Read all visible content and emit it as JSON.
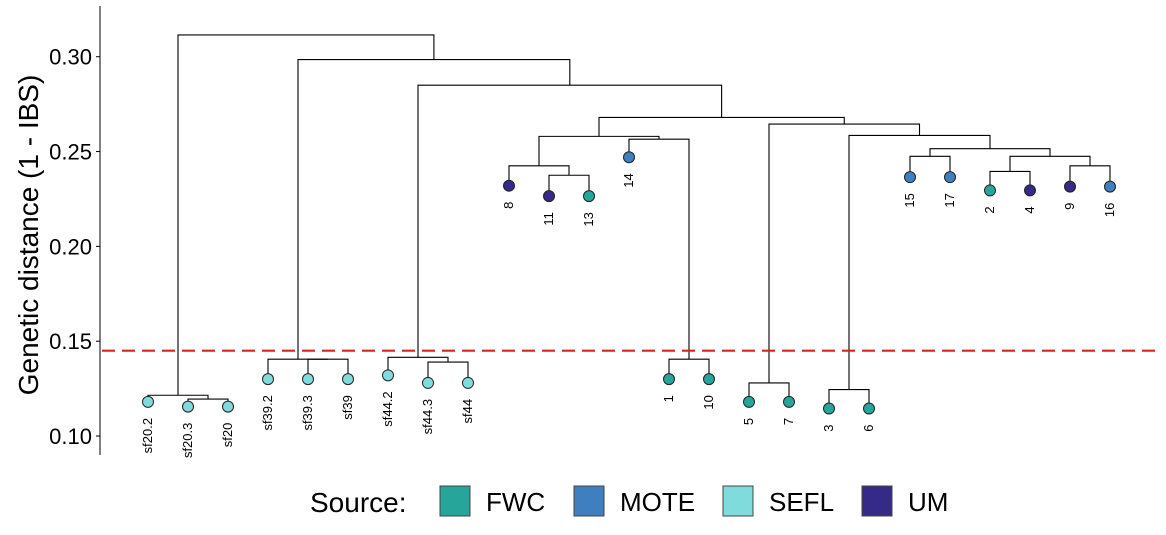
{
  "chart_data": {
    "type": "dendrogram",
    "title": "",
    "xlabel": "",
    "ylabel": "Genetic distance (1 - IBS)",
    "ylim": [
      0.09,
      0.322
    ],
    "yticks": [
      0.1,
      0.15,
      0.2,
      0.25,
      0.3
    ],
    "ytick_labels": [
      "0.10",
      "0.15",
      "0.20",
      "0.25",
      "0.30"
    ],
    "grid": false,
    "threshold": {
      "y": 0.145,
      "color": "#e0201c",
      "style": "dashed"
    },
    "legend": {
      "title": "Source:",
      "position": "bottom",
      "entries": [
        {
          "label": "FWC",
          "color": "#26a69a"
        },
        {
          "label": "MOTE",
          "color": "#3f7fbf"
        },
        {
          "label": "SEFL",
          "color": "#80dcdc"
        },
        {
          "label": "UM",
          "color": "#352a87"
        }
      ]
    },
    "leaves": [
      {
        "label": "sf20.2",
        "source": "SEFL",
        "height": 0.118
      },
      {
        "label": "sf20.3",
        "source": "SEFL",
        "height": 0.1155
      },
      {
        "label": "sf20",
        "source": "SEFL",
        "height": 0.1155
      },
      {
        "label": "sf39.2",
        "source": "SEFL",
        "height": 0.13
      },
      {
        "label": "sf39.3",
        "source": "SEFL",
        "height": 0.13
      },
      {
        "label": "sf39",
        "source": "SEFL",
        "height": 0.13
      },
      {
        "label": "sf44.2",
        "source": "SEFL",
        "height": 0.132
      },
      {
        "label": "sf44.3",
        "source": "SEFL",
        "height": 0.128
      },
      {
        "label": "sf44",
        "source": "SEFL",
        "height": 0.128
      },
      {
        "label": "8",
        "source": "UM",
        "height": 0.232
      },
      {
        "label": "11",
        "source": "UM",
        "height": 0.2265
      },
      {
        "label": "13",
        "source": "FWC",
        "height": 0.2265
      },
      {
        "label": "14",
        "source": "MOTE",
        "height": 0.247
      },
      {
        "label": "1",
        "source": "FWC",
        "height": 0.13
      },
      {
        "label": "10",
        "source": "FWC",
        "height": 0.13
      },
      {
        "label": "5",
        "source": "FWC",
        "height": 0.118
      },
      {
        "label": "7",
        "source": "FWC",
        "height": 0.118
      },
      {
        "label": "3",
        "source": "FWC",
        "height": 0.1145
      },
      {
        "label": "6",
        "source": "FWC",
        "height": 0.1145
      },
      {
        "label": "15",
        "source": "MOTE",
        "height": 0.2365
      },
      {
        "label": "17",
        "source": "MOTE",
        "height": 0.2365
      },
      {
        "label": "2",
        "source": "FWC",
        "height": 0.2295
      },
      {
        "label": "4",
        "source": "UM",
        "height": 0.2295
      },
      {
        "label": "9",
        "source": "UM",
        "height": 0.2315
      },
      {
        "label": "16",
        "source": "MOTE",
        "height": 0.2315
      }
    ],
    "merges": [
      {
        "children": [
          "L:sf20.3",
          "L:sf20"
        ],
        "height": 0.1195
      },
      {
        "children": [
          "L:sf20.2",
          "M:0"
        ],
        "height": 0.1215
      },
      {
        "children": [
          "L:sf39.3",
          "L:sf39"
        ],
        "height": 0.1405
      },
      {
        "children": [
          "L:sf39.2",
          "M:2"
        ],
        "height": 0.1405
      },
      {
        "children": [
          "L:sf44.3",
          "L:sf44"
        ],
        "height": 0.139
      },
      {
        "children": [
          "L:sf44.2",
          "M:4"
        ],
        "height": 0.1415
      },
      {
        "children": [
          "L:11",
          "L:13"
        ],
        "height": 0.2375
      },
      {
        "children": [
          "L:8",
          "M:6"
        ],
        "height": 0.2425
      },
      {
        "children": [
          "L:1",
          "L:10"
        ],
        "height": 0.1405
      },
      {
        "children": [
          "L:14",
          "M:8"
        ],
        "height": 0.2565
      },
      {
        "children": [
          "M:7",
          "M:9"
        ],
        "height": 0.258
      },
      {
        "children": [
          "L:5",
          "L:7"
        ],
        "height": 0.128
      },
      {
        "children": [
          "L:3",
          "L:6"
        ],
        "height": 0.1245
      },
      {
        "children": [
          "L:15",
          "L:17"
        ],
        "height": 0.2475
      },
      {
        "children": [
          "L:2",
          "L:4"
        ],
        "height": 0.2395
      },
      {
        "children": [
          "L:9",
          "L:16"
        ],
        "height": 0.2425
      },
      {
        "children": [
          "M:14",
          "M:15"
        ],
        "height": 0.2475
      },
      {
        "children": [
          "M:13",
          "M:16"
        ],
        "height": 0.2515
      },
      {
        "children": [
          "M:12",
          "M:17"
        ],
        "height": 0.2585
      },
      {
        "children": [
          "M:11",
          "M:18"
        ],
        "height": 0.2645
      },
      {
        "children": [
          "M:10",
          "M:19"
        ],
        "height": 0.268
      },
      {
        "children": [
          "M:5",
          "M:20"
        ],
        "height": 0.285
      },
      {
        "children": [
          "M:3",
          "M:21"
        ],
        "height": 0.2985
      },
      {
        "children": [
          "M:1",
          "M:22"
        ],
        "height": 0.3115
      }
    ]
  }
}
